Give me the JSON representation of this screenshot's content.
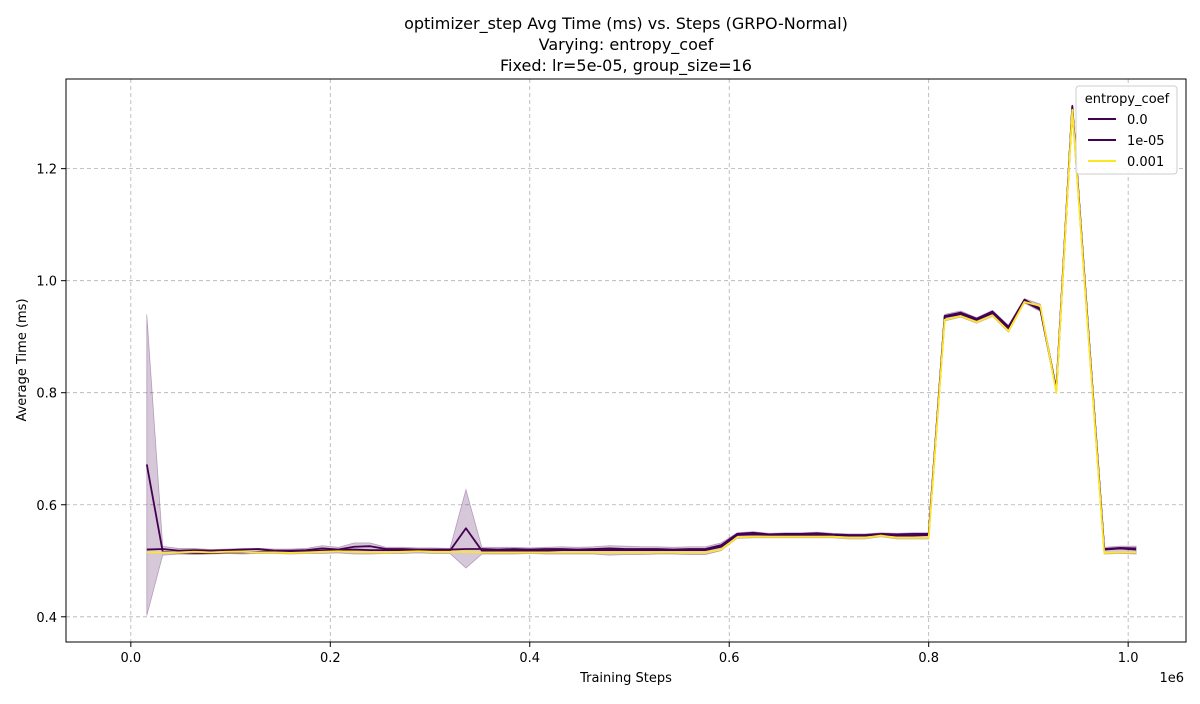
{
  "chart_data": {
    "type": "line",
    "title_lines": [
      "optimizer_step Avg Time (ms) vs. Steps (GRPO-Normal)",
      "Varying: entropy_coef",
      "Fixed: lr=5e-05, group_size=16"
    ],
    "xlabel": "Training Steps",
    "ylabel": "Average Time (ms)",
    "x_offset_label": "1e6",
    "xlim": [
      -0.065,
      1.058
    ],
    "ylim": [
      0.355,
      1.36
    ],
    "xticks": [
      0.0,
      0.2,
      0.4,
      0.6,
      0.8,
      1.0
    ],
    "xtick_labels": [
      "0.0",
      "0.2",
      "0.4",
      "0.6",
      "0.8",
      "1.0"
    ],
    "yticks": [
      0.4,
      0.6,
      0.8,
      1.0,
      1.2
    ],
    "ytick_labels": [
      "0.4",
      "0.6",
      "0.8",
      "1.0",
      "1.2"
    ],
    "grid": true,
    "legend": {
      "title": "entropy_coef",
      "position": "top-right"
    },
    "x": [
      0.016,
      0.032,
      0.048,
      0.064,
      0.08,
      0.096,
      0.112,
      0.128,
      0.144,
      0.16,
      0.176,
      0.192,
      0.208,
      0.224,
      0.24,
      0.256,
      0.272,
      0.288,
      0.304,
      0.32,
      0.336,
      0.352,
      0.368,
      0.384,
      0.4,
      0.416,
      0.432,
      0.448,
      0.464,
      0.48,
      0.496,
      0.512,
      0.528,
      0.544,
      0.56,
      0.576,
      0.592,
      0.608,
      0.624,
      0.64,
      0.656,
      0.672,
      0.688,
      0.704,
      0.72,
      0.736,
      0.752,
      0.768,
      0.784,
      0.8,
      0.816,
      0.832,
      0.848,
      0.864,
      0.88,
      0.896,
      0.912,
      0.928,
      0.944,
      0.96,
      0.976,
      0.992,
      1.008
    ],
    "series": [
      {
        "name": "0.0",
        "color": "#440154",
        "values": [
          0.672,
          0.516,
          0.515,
          0.514,
          0.514,
          0.515,
          0.515,
          0.516,
          0.517,
          0.517,
          0.517,
          0.518,
          0.519,
          0.52,
          0.519,
          0.519,
          0.519,
          0.519,
          0.518,
          0.518,
          0.558,
          0.518,
          0.518,
          0.518,
          0.518,
          0.518,
          0.519,
          0.519,
          0.519,
          0.519,
          0.519,
          0.519,
          0.519,
          0.519,
          0.519,
          0.519,
          0.525,
          0.546,
          0.547,
          0.546,
          0.546,
          0.546,
          0.546,
          0.546,
          0.545,
          0.545,
          0.547,
          0.545,
          0.545,
          0.546,
          0.935,
          0.94,
          0.93,
          0.942,
          0.915,
          0.963,
          0.948,
          0.805,
          1.31,
          0.91,
          0.52,
          0.522,
          0.52
        ]
      },
      {
        "name": "1e-05",
        "color": "#440154",
        "values": [
          0.52,
          0.521,
          0.518,
          0.519,
          0.518,
          0.519,
          0.52,
          0.521,
          0.518,
          0.518,
          0.519,
          0.522,
          0.52,
          0.525,
          0.526,
          0.521,
          0.521,
          0.52,
          0.52,
          0.52,
          0.521,
          0.521,
          0.52,
          0.521,
          0.52,
          0.521,
          0.521,
          0.52,
          0.521,
          0.522,
          0.521,
          0.521,
          0.521,
          0.52,
          0.521,
          0.521,
          0.528,
          0.548,
          0.55,
          0.547,
          0.548,
          0.548,
          0.549,
          0.547,
          0.546,
          0.546,
          0.548,
          0.547,
          0.548,
          0.548,
          0.937,
          0.943,
          0.932,
          0.945,
          0.918,
          0.966,
          0.95,
          0.806,
          1.312,
          0.912,
          0.521,
          0.523,
          0.522
        ]
      },
      {
        "name": "0.001",
        "color": "#fde725",
        "values": [
          0.515,
          0.515,
          0.515,
          0.516,
          0.515,
          0.516,
          0.516,
          0.515,
          0.515,
          0.514,
          0.515,
          0.516,
          0.517,
          0.516,
          0.515,
          0.515,
          0.516,
          0.517,
          0.516,
          0.516,
          0.516,
          0.515,
          0.515,
          0.515,
          0.515,
          0.515,
          0.515,
          0.515,
          0.515,
          0.515,
          0.515,
          0.515,
          0.515,
          0.515,
          0.515,
          0.515,
          0.52,
          0.542,
          0.543,
          0.543,
          0.543,
          0.543,
          0.543,
          0.543,
          0.541,
          0.541,
          0.545,
          0.541,
          0.541,
          0.541,
          0.93,
          0.937,
          0.926,
          0.938,
          0.91,
          0.962,
          0.955,
          0.8,
          1.305,
          0.905,
          0.514,
          0.515,
          0.515
        ]
      }
    ],
    "band": {
      "color": "#440154",
      "opacity": 0.22,
      "upper": [
        0.94,
        0.526,
        0.522,
        0.522,
        0.52,
        0.521,
        0.522,
        0.522,
        0.521,
        0.521,
        0.522,
        0.527,
        0.524,
        0.532,
        0.532,
        0.524,
        0.524,
        0.523,
        0.523,
        0.522,
        0.627,
        0.524,
        0.524,
        0.524,
        0.523,
        0.524,
        0.525,
        0.524,
        0.525,
        0.527,
        0.526,
        0.525,
        0.525,
        0.524,
        0.525,
        0.525,
        0.532,
        0.55,
        0.552,
        0.549,
        0.55,
        0.55,
        0.551,
        0.549,
        0.548,
        0.548,
        0.55,
        0.549,
        0.55,
        0.55,
        0.94,
        0.946,
        0.934,
        0.947,
        0.92,
        0.968,
        0.958,
        0.808,
        1.314,
        0.915,
        0.524,
        0.526,
        0.526
      ],
      "lower": [
        0.402,
        0.51,
        0.512,
        0.511,
        0.512,
        0.513,
        0.512,
        0.513,
        0.513,
        0.512,
        0.513,
        0.513,
        0.514,
        0.512,
        0.512,
        0.513,
        0.513,
        0.514,
        0.513,
        0.513,
        0.487,
        0.512,
        0.512,
        0.512,
        0.513,
        0.512,
        0.512,
        0.512,
        0.512,
        0.51,
        0.511,
        0.511,
        0.512,
        0.512,
        0.511,
        0.511,
        0.518,
        0.54,
        0.541,
        0.541,
        0.541,
        0.541,
        0.541,
        0.541,
        0.539,
        0.539,
        0.543,
        0.539,
        0.539,
        0.539,
        0.928,
        0.935,
        0.924,
        0.936,
        0.908,
        0.96,
        0.945,
        0.798,
        1.303,
        0.903,
        0.512,
        0.513,
        0.512
      ]
    }
  }
}
